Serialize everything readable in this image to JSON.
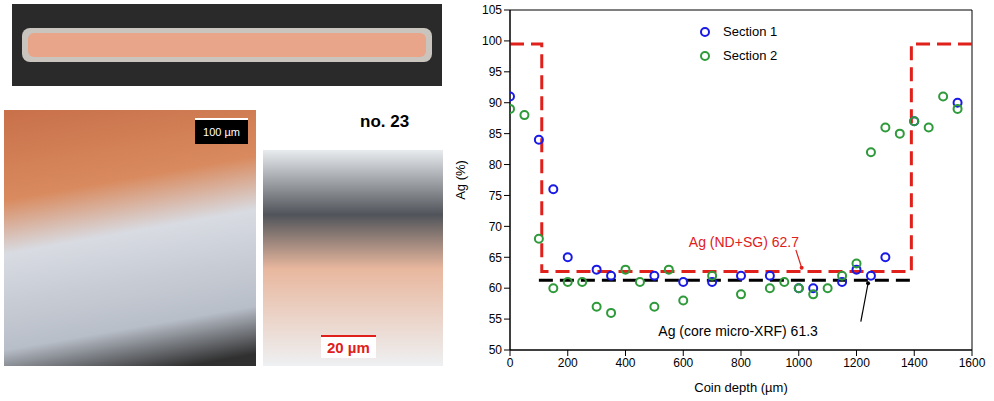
{
  "figure_label": "no. 23",
  "scale_bars": [
    "100 µm",
    "20 µm"
  ],
  "chart_data": {
    "type": "scatter",
    "x_label": "Coin depth (µm)",
    "y_label": "Ag (%)",
    "xlim": [
      0,
      1600
    ],
    "xticks": [
      0,
      200,
      400,
      600,
      800,
      1000,
      1200,
      1400,
      1600
    ],
    "ylim": [
      50,
      105
    ],
    "yticks": [
      50,
      55,
      60,
      65,
      70,
      75,
      80,
      85,
      90,
      95,
      100,
      105
    ],
    "grid": false,
    "legend": "top",
    "series": [
      {
        "name": "Section 1",
        "color": "#1a1ae6",
        "marker": "circle",
        "x": [
          0,
          100,
          150,
          200,
          300,
          350,
          500,
          600,
          700,
          800,
          900,
          1000,
          1050,
          1150,
          1200,
          1250,
          1300,
          1400,
          1550
        ],
        "values": [
          91,
          84,
          76,
          65,
          63,
          62,
          62,
          61,
          61,
          62,
          62,
          60,
          60,
          61,
          63,
          62,
          65,
          87,
          90
        ]
      },
      {
        "name": "Section 2",
        "color": "#2e9a3a",
        "marker": "circle",
        "x": [
          0,
          50,
          100,
          150,
          200,
          250,
          300,
          350,
          400,
          450,
          500,
          550,
          600,
          700,
          800,
          900,
          950,
          1000,
          1050,
          1100,
          1150,
          1200,
          1250,
          1300,
          1350,
          1400,
          1450,
          1500,
          1550
        ],
        "values": [
          89,
          88,
          68,
          60,
          61,
          61,
          57,
          56,
          63,
          61,
          57,
          63,
          58,
          62,
          59,
          60,
          61,
          60,
          59,
          60,
          62,
          64,
          82,
          86,
          85,
          87,
          86,
          91,
          89
        ]
      }
    ],
    "lines": [
      {
        "type": "line",
        "color": "#e0201a",
        "line_style": "dashed",
        "x": [
          0,
          110,
          110,
          1390,
          1390,
          1600
        ],
        "values": [
          99.5,
          99.5,
          62.7,
          62.7,
          99.5,
          99.5
        ]
      },
      {
        "type": "line",
        "color": "#000000",
        "line_style": "dashed",
        "x": [
          100,
          1400
        ],
        "values": [
          61.3,
          61.3
        ]
      }
    ],
    "annotations": [
      {
        "text": "Ag (ND+SG) 62.7",
        "color": "#e0201a"
      },
      {
        "text": "Ag (core micro-XRF) 61.3",
        "color": "#000000"
      }
    ]
  }
}
